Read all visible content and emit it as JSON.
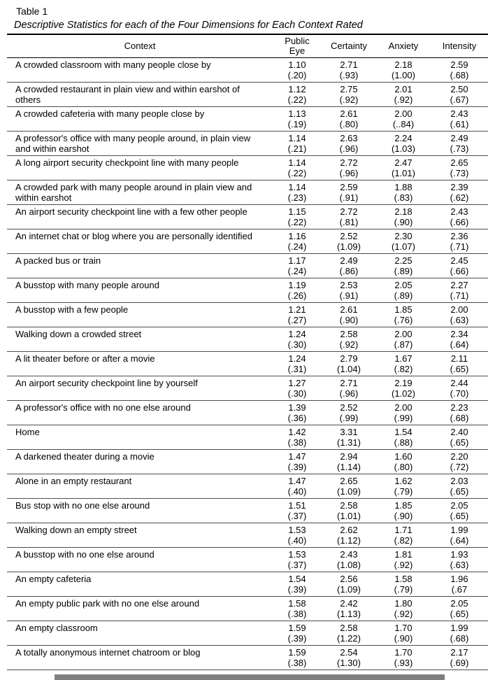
{
  "table": {
    "label": "Table 1",
    "title": "Descriptive Statistics for each of the Four Dimensions for Each Context Rated",
    "columns": [
      "Context",
      "Public Eye",
      "Certainty",
      "Anxiety",
      "Intensity"
    ],
    "rows": [
      {
        "context": "A crowded classroom with many people close by",
        "stats": [
          {
            "mean": "1.10",
            "sd": "(.20)"
          },
          {
            "mean": "2.71",
            "sd": "(.93)"
          },
          {
            "mean": "2.18",
            "sd": "(1.00)"
          },
          {
            "mean": "2.59",
            "sd": "(.68)"
          }
        ]
      },
      {
        "context": "A crowded restaurant in plain view and within earshot of others",
        "stats": [
          {
            "mean": "1.12",
            "sd": "(.22)"
          },
          {
            "mean": "2.75",
            "sd": "(.92)"
          },
          {
            "mean": "2.01",
            "sd": "(.92)"
          },
          {
            "mean": "2.50",
            "sd": "(.67)"
          }
        ]
      },
      {
        "context": "A crowded cafeteria with many people close by",
        "stats": [
          {
            "mean": "1.13",
            "sd": "(.19)"
          },
          {
            "mean": "2.61",
            "sd": "(.80)"
          },
          {
            "mean": "2.00",
            "sd": "(..84)"
          },
          {
            "mean": "2.43",
            "sd": "(.61)"
          }
        ]
      },
      {
        "context": "A professor's office with many people around, in plain view and within earshot",
        "stats": [
          {
            "mean": "1.14",
            "sd": "(.21)"
          },
          {
            "mean": "2.63",
            "sd": "(.96)"
          },
          {
            "mean": "2.24",
            "sd": "(1.03)"
          },
          {
            "mean": "2.49",
            "sd": "(.73)"
          }
        ]
      },
      {
        "context": "A long airport security checkpoint line with many people",
        "stats": [
          {
            "mean": "1.14",
            "sd": "(.22)"
          },
          {
            "mean": "2.72",
            "sd": "(.96)"
          },
          {
            "mean": "2.47",
            "sd": "(1.01)"
          },
          {
            "mean": "2.65",
            "sd": "(.73)"
          }
        ]
      },
      {
        "context": "A crowded park with many people around in plain view and within earshot",
        "stats": [
          {
            "mean": "1.14",
            "sd": "(.23)"
          },
          {
            "mean": "2.59",
            "sd": "(.91)"
          },
          {
            "mean": "1.88",
            "sd": "(.83)"
          },
          {
            "mean": "2.39",
            "sd": "(.62)"
          }
        ]
      },
      {
        "context": "An airport security checkpoint line with a few other people",
        "stats": [
          {
            "mean": "1.15",
            "sd": "(.22)"
          },
          {
            "mean": "2.72",
            "sd": "(.81)"
          },
          {
            "mean": "2.18",
            "sd": "(.90)"
          },
          {
            "mean": "2.43",
            "sd": "(.66)"
          }
        ]
      },
      {
        "context": "An internet chat or blog where you are personally identified",
        "stats": [
          {
            "mean": "1.16",
            "sd": "(.24)"
          },
          {
            "mean": "2.52",
            "sd": "(1.09)"
          },
          {
            "mean": "2.30",
            "sd": "(1.07)"
          },
          {
            "mean": "2.36",
            "sd": "(.71)"
          }
        ]
      },
      {
        "context": "A packed bus or train",
        "stats": [
          {
            "mean": "1.17",
            "sd": "(.24)"
          },
          {
            "mean": "2.49",
            "sd": "(.86)"
          },
          {
            "mean": "2.25",
            "sd": "(.89)"
          },
          {
            "mean": "2.45",
            "sd": "(.66)"
          }
        ]
      },
      {
        "context": "A busstop with many people around",
        "stats": [
          {
            "mean": "1.19",
            "sd": "(.26)"
          },
          {
            "mean": "2.53",
            "sd": "(.91)"
          },
          {
            "mean": "2.05",
            "sd": "(.89)"
          },
          {
            "mean": "2.27",
            "sd": "(.71)"
          }
        ]
      },
      {
        "context": "A busstop with a few people",
        "stats": [
          {
            "mean": "1.21",
            "sd": "(.27)"
          },
          {
            "mean": "2.61",
            "sd": "(.90)"
          },
          {
            "mean": "1.85",
            "sd": "(.76)"
          },
          {
            "mean": "2.00",
            "sd": "(.63)"
          }
        ]
      },
      {
        "context": "Walking down a crowded street",
        "stats": [
          {
            "mean": "1.24",
            "sd": "(.30)"
          },
          {
            "mean": "2.58",
            "sd": "(.92)"
          },
          {
            "mean": "2.00",
            "sd": "(.87)"
          },
          {
            "mean": "2.34",
            "sd": "(.64)"
          }
        ]
      },
      {
        "context": "A lit theater before or after a movie",
        "stats": [
          {
            "mean": "1.24",
            "sd": "(.31)"
          },
          {
            "mean": "2.79",
            "sd": "(1.04)"
          },
          {
            "mean": "1.67",
            "sd": "(.82)"
          },
          {
            "mean": "2.11",
            "sd": "(.65)"
          }
        ]
      },
      {
        "context": "An airport security checkpoint line by yourself",
        "stats": [
          {
            "mean": "1.27",
            "sd": "(.30)"
          },
          {
            "mean": "2.71",
            "sd": "(.96)"
          },
          {
            "mean": "2.19",
            "sd": "(1.02)"
          },
          {
            "mean": "2.44",
            "sd": "(.70)"
          }
        ]
      },
      {
        "context": "A professor's office with no one else around",
        "stats": [
          {
            "mean": "1.39",
            "sd": "(.36)"
          },
          {
            "mean": "2.52",
            "sd": "(.99)"
          },
          {
            "mean": "2.00",
            "sd": "(.99)"
          },
          {
            "mean": "2.23",
            "sd": "(.68)"
          }
        ]
      },
      {
        "context": "Home",
        "stats": [
          {
            "mean": "1.42",
            "sd": "(.38)"
          },
          {
            "mean": "3.31",
            "sd": "(1.31)"
          },
          {
            "mean": "1.54",
            "sd": "(.88)"
          },
          {
            "mean": "2.40",
            "sd": "(.65)"
          }
        ]
      },
      {
        "context": "A darkened theater during a movie",
        "stats": [
          {
            "mean": "1.47",
            "sd": "(.39)"
          },
          {
            "mean": "2.94",
            "sd": "(1.14)"
          },
          {
            "mean": "1.60",
            "sd": "(.80)"
          },
          {
            "mean": "2.20",
            "sd": "(.72)"
          }
        ]
      },
      {
        "context": "Alone in an empty restaurant",
        "stats": [
          {
            "mean": "1.47",
            "sd": "(.40)"
          },
          {
            "mean": "2.65",
            "sd": "(1.09)"
          },
          {
            "mean": "1.62",
            "sd": "(.79)"
          },
          {
            "mean": "2.03",
            "sd": "(.65)"
          }
        ]
      },
      {
        "context": "Bus stop with no one else around",
        "stats": [
          {
            "mean": "1.51",
            "sd": "(.37)"
          },
          {
            "mean": "2.58",
            "sd": "(1.01)"
          },
          {
            "mean": "1.85",
            "sd": "(.90)"
          },
          {
            "mean": "2.05",
            "sd": "(.65)"
          }
        ]
      },
      {
        "context": "Walking down an empty street",
        "stats": [
          {
            "mean": "1.53",
            "sd": "(.40)"
          },
          {
            "mean": "2.62",
            "sd": "(1.12)"
          },
          {
            "mean": "1.71",
            "sd": "(.82)"
          },
          {
            "mean": "1.99",
            "sd": "(.64)"
          }
        ]
      },
      {
        "context": "A busstop with no one else around",
        "stats": [
          {
            "mean": "1.53",
            "sd": "(.37)"
          },
          {
            "mean": "2.43",
            "sd": "(1.08)"
          },
          {
            "mean": "1.81",
            "sd": "(.92)"
          },
          {
            "mean": "1.93",
            "sd": "(.63)"
          }
        ]
      },
      {
        "context": "An empty cafeteria",
        "stats": [
          {
            "mean": "1.54",
            "sd": "(.39)"
          },
          {
            "mean": "2.56",
            "sd": "(1.09)"
          },
          {
            "mean": "1.58",
            "sd": "(.79)"
          },
          {
            "mean": "1.96",
            "sd": "(.67"
          }
        ]
      },
      {
        "context": "An empty public park with no one else around",
        "stats": [
          {
            "mean": "1.58",
            "sd": "(.38)"
          },
          {
            "mean": "2.42",
            "sd": "(1.13)"
          },
          {
            "mean": "1.80",
            "sd": "(.92)"
          },
          {
            "mean": "2.05",
            "sd": "(.65)"
          }
        ]
      },
      {
        "context": "An empty classroom",
        "stats": [
          {
            "mean": "1.59",
            "sd": "(.39)"
          },
          {
            "mean": "2.58",
            "sd": "(1.22)"
          },
          {
            "mean": "1.70",
            "sd": "(.90)"
          },
          {
            "mean": "1.99",
            "sd": "(.68)"
          }
        ]
      },
      {
        "context": "A totally anonymous internet chatroom or blog",
        "stats": [
          {
            "mean": "1.59",
            "sd": "(.38)"
          },
          {
            "mean": "2.54",
            "sd": "(1.30)"
          },
          {
            "mean": "1.70",
            "sd": "(.93)"
          },
          {
            "mean": "2.17",
            "sd": "(.69)"
          }
        ]
      }
    ]
  }
}
